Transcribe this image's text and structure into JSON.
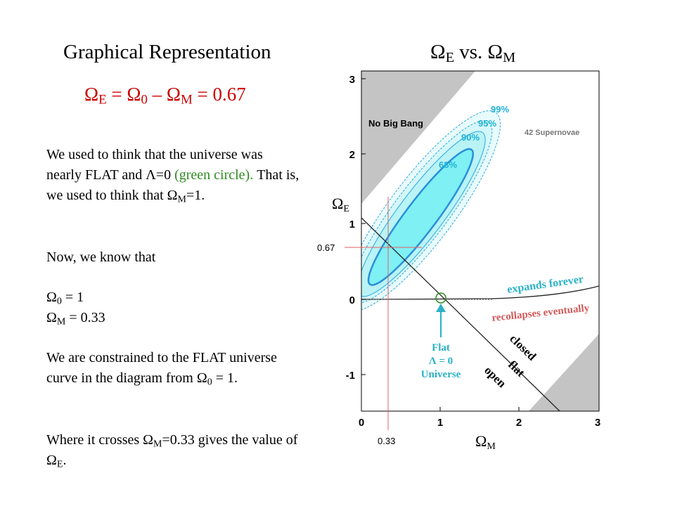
{
  "title_left": "Graphical Representation",
  "title_right": {
    "main": "Ω",
    "sub": "E",
    "vs": " vs. ",
    "main2": "Ω",
    "sub2": "M"
  },
  "equation": {
    "a": "Ω",
    "a_sub": "E",
    "eq1": " = ",
    "b": "Ω",
    "b_sub": "0",
    "minus": " – ",
    "c": "Ω",
    "c_sub": "M",
    "eq2": " = 0.67"
  },
  "text": {
    "p1_a": "We used to think that the universe was nearly FLAT and ",
    "p1_lambda": "Λ",
    "p1_b": "=0 ",
    "p1_green": "(green circle).",
    "p1_c": "  That is, we used to think that ",
    "p1_om": "Ω",
    "p1_om_sub": "M",
    "p1_d": "=1.",
    "p2": "Now, we know that",
    "line_o0": "Ω",
    "line_o0_sub": "0",
    "line_o0_val": " = 1",
    "line_om": "Ω",
    "line_om_sub": "M",
    "line_om_val": " = 0.33",
    "p4": "We are constrained to the FLAT universe curve in the diagram from ",
    "p4_o": "Ω",
    "p4_o_sub": "0",
    "p4_end": " = 1.",
    "p5_a": "Where it crosses ",
    "p5_o": "Ω",
    "p5_o_sub": "M",
    "p5_b": "=0.33 gives the value of ",
    "p5_o2": "Ω",
    "p5_o2_sub": "E",
    "p5_c": "."
  },
  "plot": {
    "x_ticks": [
      "0",
      "1",
      "2",
      "3"
    ],
    "y_ticks": [
      "3",
      "2",
      "1",
      "0",
      "-1"
    ],
    "x_label_main": "Ω",
    "x_label_sub": "M",
    "y_label_main": "Ω",
    "y_label_sub": "E",
    "marker_x": "0.33",
    "marker_y": "0.67",
    "no_big_bang": "No Big Bang",
    "supernovae": "42 Supernovae",
    "conf_99": "99%",
    "conf_95": "95%",
    "conf_90": "90%",
    "conf_68": "68%",
    "expands": "expands forever",
    "recollapses": "recollapses eventually",
    "closed": "closed",
    "flat": "flat",
    "open": "open",
    "flat_univ_1": "Flat",
    "flat_univ_2": "Λ = 0",
    "flat_univ_3": "Universe"
  },
  "colors": {
    "title_eq": "#cc0000",
    "green": "#2e8b22",
    "cyan_fill": "#7ff0f4",
    "contour": "#2aa8e0",
    "teal_text": "#1fb2d6",
    "annot_red": "#d45a5a",
    "annot_teal": "#2ab2c8",
    "guide_red": "#e06060",
    "gray": "#c4c4c4"
  }
}
